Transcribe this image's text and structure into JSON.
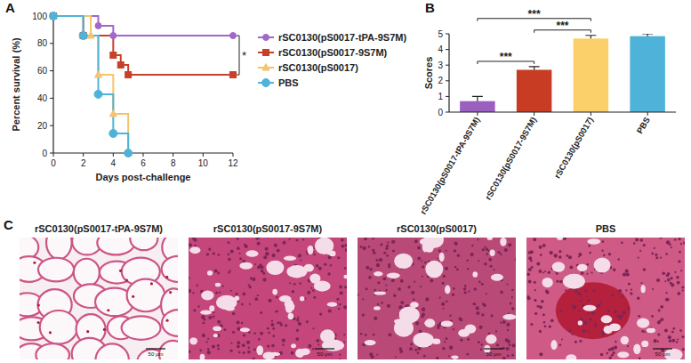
{
  "chart_data": [
    {
      "type": "step",
      "panel_label": "A",
      "x_label": "Days post-challenge",
      "y_label": "Percent survival (%)",
      "xlim": [
        0,
        12
      ],
      "ylim": [
        0,
        100
      ],
      "xticks": [
        0,
        2,
        4,
        6,
        8,
        10,
        12
      ],
      "yticks": [
        0,
        20,
        40,
        60,
        80,
        100
      ],
      "grid": false,
      "legend": "right",
      "series": [
        {
          "name": "rSC0130(pS0017-tPA-9S7M)",
          "color": "#a366c9",
          "marker": "circle",
          "x": [
            0,
            3,
            4,
            12
          ],
          "values": [
            100,
            92.9,
            85.7,
            85.7
          ]
        },
        {
          "name": "rSC0130(pS0017-9S7M)",
          "color": "#c8402a",
          "marker": "square",
          "x": [
            0,
            2,
            4,
            4.5,
            5,
            12
          ],
          "values": [
            100,
            85.7,
            71.4,
            64.3,
            57.1,
            57.1
          ]
        },
        {
          "name": "rSC0130(pS0017)",
          "color": "#f5c46e",
          "marker": "triangle",
          "x": [
            0,
            2.5,
            3,
            4,
            5
          ],
          "values": [
            100,
            85.7,
            57.1,
            28.6,
            0
          ]
        },
        {
          "name": "PBS",
          "color": "#4fb3d9",
          "marker": "circle",
          "x": [
            0,
            2,
            3,
            4,
            5
          ],
          "values": [
            100,
            85.7,
            42.9,
            14.3,
            0
          ]
        }
      ],
      "annotations": [
        {
          "label": "*",
          "from": 0,
          "to": 1
        }
      ]
    },
    {
      "type": "bar",
      "panel_label": "B",
      "y_label": "Scores",
      "categories": [
        "rSC0130(pS0017-tPA-9S7M)",
        "rSC0130(pS0017-9S7M)",
        "rSC0130(pS0017)",
        "PBS"
      ],
      "values": [
        0.7,
        2.7,
        4.7,
        4.85
      ],
      "errors": [
        0.3,
        0.2,
        0.2,
        0.15
      ],
      "colors": [
        "#9b5fc0",
        "#c83c23",
        "#fbd06b",
        "#4fb3d9"
      ],
      "ylim": [
        0,
        5
      ],
      "yticks": [
        0,
        1,
        2,
        3,
        4,
        5
      ],
      "grid": false,
      "annotations": [
        {
          "label": "***",
          "from": 0,
          "to": 1
        },
        {
          "label": "***",
          "from": 1,
          "to": 2
        },
        {
          "label": "***",
          "from": 0,
          "to": 2
        }
      ]
    }
  ],
  "images_panel": {
    "panel_label": "C",
    "images": [
      {
        "title": "rSC0130(pS0017-tPA-9S7M)",
        "scale_bar": "50 μm"
      },
      {
        "title": "rSC0130(pS0017-9S7M)",
        "scale_bar": "50 μm"
      },
      {
        "title": "rSC0130(pS0017)",
        "scale_bar": "50 μm"
      },
      {
        "title": "PBS",
        "scale_bar": "50 μm"
      }
    ]
  }
}
